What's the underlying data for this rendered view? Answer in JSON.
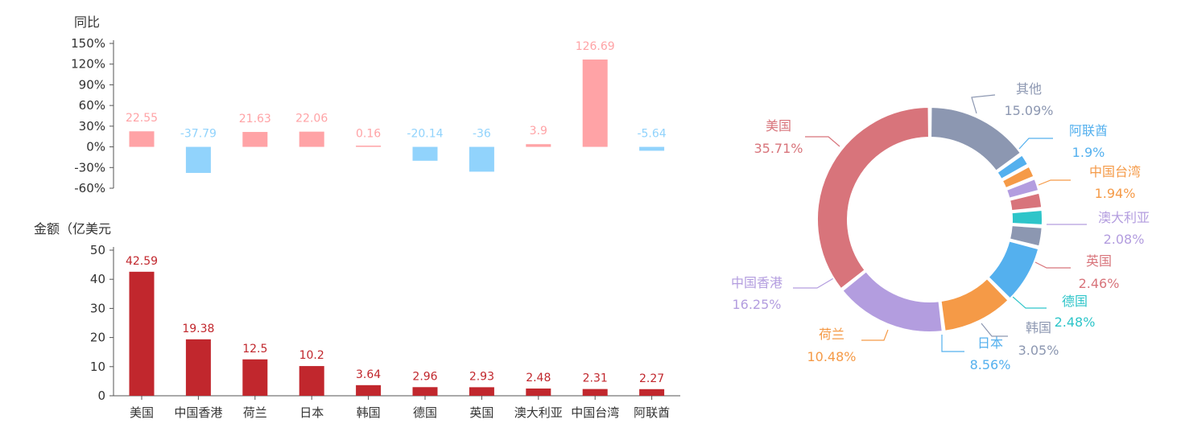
{
  "chart_data": [
    {
      "type": "bar",
      "ylabel": "同比",
      "categories": [
        "美国",
        "中国香港",
        "荷兰",
        "日本",
        "韩国",
        "德国",
        "英国",
        "澳大利亚",
        "中国台湾",
        "阿联酋"
      ],
      "values": [
        22.55,
        -37.79,
        21.63,
        22.06,
        0.16,
        -20.14,
        -36,
        3.9,
        126.69,
        -5.64
      ],
      "value_labels": [
        "22.55",
        "-37.79",
        "21.63",
        "22.06",
        "0.16",
        "-20.14",
        "-36",
        "3.9",
        "126.69",
        "-5.64"
      ],
      "yticks": [
        "150%",
        "120%",
        "90%",
        "60%",
        "30%",
        "0%",
        "-30%",
        "-60%"
      ],
      "ylim": [
        -60,
        150
      ],
      "colors": {
        "positive": "#ffa3a6",
        "negative": "#91d3fc"
      }
    },
    {
      "type": "bar",
      "ylabel": "金额（亿美元",
      "categories": [
        "美国",
        "中国香港",
        "荷兰",
        "日本",
        "韩国",
        "德国",
        "英国",
        "澳大利亚",
        "中国台湾",
        "阿联酋"
      ],
      "values": [
        42.59,
        19.38,
        12.5,
        10.2,
        3.64,
        2.96,
        2.93,
        2.48,
        2.31,
        2.27
      ],
      "value_labels": [
        "42.59",
        "19.38",
        "12.5",
        "10.2",
        "3.64",
        "2.96",
        "2.93",
        "2.48",
        "2.31",
        "2.27"
      ],
      "yticks": [
        "50",
        "40",
        "30",
        "20",
        "10",
        "0"
      ],
      "ylim": [
        0,
        50
      ],
      "color": "#c1272d"
    },
    {
      "type": "pie",
      "slices": [
        {
          "name": "其他",
          "percent_label": "15.09%",
          "value": 15.09,
          "color": "#8c97b1"
        },
        {
          "name": "阿联酋",
          "percent_label": "1.9%",
          "value": 1.9,
          "color": "#54b0ee"
        },
        {
          "name": "中国台湾",
          "percent_label": "1.94%",
          "value": 1.94,
          "color": "#f59a47"
        },
        {
          "name": "澳大利亚",
          "percent_label": "2.08%",
          "value": 2.08,
          "color": "#b39ddf"
        },
        {
          "name": "英国",
          "percent_label": "2.46%",
          "value": 2.46,
          "color": "#d8747b"
        },
        {
          "name": "德国",
          "percent_label": "2.48%",
          "value": 2.48,
          "color": "#2ec5c9"
        },
        {
          "name": "韩国",
          "percent_label": "3.05%",
          "value": 3.05,
          "color": "#8c97b1"
        },
        {
          "name": "日本",
          "percent_label": "8.56%",
          "value": 8.56,
          "color": "#54b0ee"
        },
        {
          "name": "荷兰",
          "percent_label": "10.48%",
          "value": 10.48,
          "color": "#f59a47"
        },
        {
          "name": "中国香港",
          "percent_label": "16.25%",
          "value": 16.25,
          "color": "#b39ddf"
        },
        {
          "name": "美国",
          "percent_label": "35.71%",
          "value": 35.71,
          "color": "#d8747b"
        }
      ]
    }
  ]
}
